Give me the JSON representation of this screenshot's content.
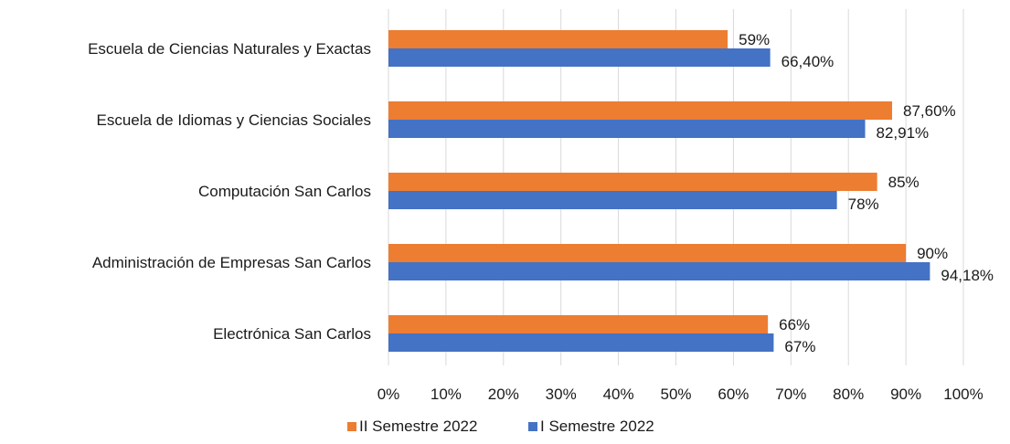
{
  "chart_data": {
    "type": "bar",
    "orientation": "horizontal",
    "categories": [
      "Escuela de Ciencias Naturales y Exactas",
      "Escuela de Idiomas y Ciencias Sociales",
      "Computación San Carlos",
      "Administración de Empresas San Carlos",
      "Electrónica San Carlos"
    ],
    "series": [
      {
        "name": "II Semestre 2022",
        "color": "#ED7D31",
        "values": [
          59,
          87.6,
          85,
          90,
          66
        ],
        "labels": [
          "59%",
          "87,60%",
          "85%",
          "90%",
          "66%"
        ]
      },
      {
        "name": "I Semestre 2022",
        "color": "#4472C4",
        "values": [
          66.4,
          82.91,
          78,
          94.18,
          67
        ],
        "labels": [
          "66,40%",
          "82,91%",
          "78%",
          "94,18%",
          "67%"
        ]
      }
    ],
    "x_ticks": [
      "0%",
      "10%",
      "20%",
      "30%",
      "40%",
      "50%",
      "60%",
      "70%",
      "80%",
      "90%",
      "100%"
    ],
    "xlim": [
      0,
      100
    ],
    "grid": true,
    "legend_position": "bottom",
    "title": "",
    "xlabel": "",
    "ylabel": ""
  }
}
